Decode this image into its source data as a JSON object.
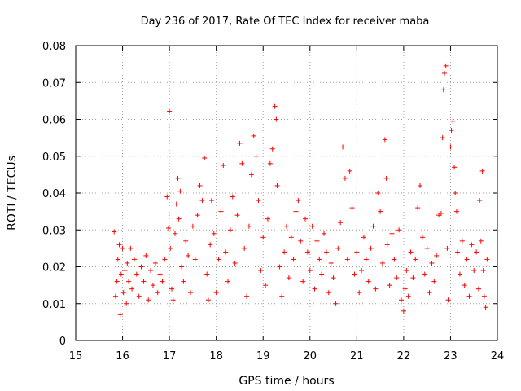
{
  "chart_data": {
    "type": "scatter",
    "title": "Day 236 of 2017, Rate Of TEC Index for receiver maba",
    "xlabel": "GPS time / hours",
    "ylabel": "ROTI / TECUs",
    "xlim": [
      15,
      24
    ],
    "ylim": [
      0,
      0.08
    ],
    "xticks": [
      "15",
      "16",
      "17",
      "18",
      "19",
      "20",
      "21",
      "22",
      "23",
      "24"
    ],
    "yticks": [
      "0",
      "0.01",
      "0.02",
      "0.03",
      "0.04",
      "0.05",
      "0.06",
      "0.07",
      "0.08"
    ],
    "grid": true,
    "marker": "+",
    "marker_color": "#ff0000",
    "series": [
      {
        "name": "ROTI",
        "points": [
          [
            15.82,
            0.0295
          ],
          [
            15.85,
            0.012
          ],
          [
            15.88,
            0.016
          ],
          [
            15.9,
            0.022
          ],
          [
            15.93,
            0.026
          ],
          [
            15.95,
            0.007
          ],
          [
            15.97,
            0.018
          ],
          [
            16.0,
            0.025
          ],
          [
            16.02,
            0.013
          ],
          [
            16.05,
            0.019
          ],
          [
            16.08,
            0.01
          ],
          [
            16.1,
            0.021
          ],
          [
            16.13,
            0.016
          ],
          [
            16.17,
            0.025
          ],
          [
            16.2,
            0.014
          ],
          [
            16.25,
            0.022
          ],
          [
            16.3,
            0.018
          ],
          [
            16.35,
            0.012
          ],
          [
            16.4,
            0.02
          ],
          [
            16.45,
            0.016
          ],
          [
            16.5,
            0.023
          ],
          [
            16.55,
            0.011
          ],
          [
            16.6,
            0.019
          ],
          [
            16.65,
            0.015
          ],
          [
            16.7,
            0.021
          ],
          [
            16.75,
            0.013
          ],
          [
            16.8,
            0.018
          ],
          [
            16.85,
            0.016
          ],
          [
            16.9,
            0.022
          ],
          [
            16.95,
            0.039
          ],
          [
            16.98,
            0.0305
          ],
          [
            17.0,
            0.0622
          ],
          [
            17.02,
            0.025
          ],
          [
            17.05,
            0.014
          ],
          [
            17.08,
            0.011
          ],
          [
            17.12,
            0.029
          ],
          [
            17.15,
            0.037
          ],
          [
            17.18,
            0.044
          ],
          [
            17.2,
            0.033
          ],
          [
            17.23,
            0.0405
          ],
          [
            17.26,
            0.02
          ],
          [
            17.3,
            0.016
          ],
          [
            17.35,
            0.027
          ],
          [
            17.4,
            0.023
          ],
          [
            17.45,
            0.013
          ],
          [
            17.5,
            0.031
          ],
          [
            17.55,
            0.022
          ],
          [
            17.6,
            0.034
          ],
          [
            17.65,
            0.042
          ],
          [
            17.7,
            0.038
          ],
          [
            17.75,
            0.0495
          ],
          [
            17.8,
            0.018
          ],
          [
            17.83,
            0.011
          ],
          [
            17.87,
            0.026
          ],
          [
            17.9,
            0.038
          ],
          [
            17.95,
            0.029
          ],
          [
            18.0,
            0.013
          ],
          [
            18.05,
            0.022
          ],
          [
            18.1,
            0.035
          ],
          [
            18.15,
            0.0475
          ],
          [
            18.2,
            0.024
          ],
          [
            18.25,
            0.016
          ],
          [
            18.3,
            0.03
          ],
          [
            18.35,
            0.039
          ],
          [
            18.4,
            0.021
          ],
          [
            18.45,
            0.034
          ],
          [
            18.5,
            0.0535
          ],
          [
            18.55,
            0.048
          ],
          [
            18.6,
            0.025
          ],
          [
            18.65,
            0.012
          ],
          [
            18.7,
            0.031
          ],
          [
            18.75,
            0.045
          ],
          [
            18.8,
            0.0555
          ],
          [
            18.85,
            0.05
          ],
          [
            18.9,
            0.038
          ],
          [
            18.95,
            0.019
          ],
          [
            19.0,
            0.028
          ],
          [
            19.05,
            0.015
          ],
          [
            19.1,
            0.033
          ],
          [
            19.15,
            0.048
          ],
          [
            19.2,
            0.052
          ],
          [
            19.25,
            0.0635
          ],
          [
            19.28,
            0.06
          ],
          [
            19.3,
            0.042
          ],
          [
            19.35,
            0.02
          ],
          [
            19.4,
            0.012
          ],
          [
            19.45,
            0.024
          ],
          [
            19.5,
            0.031
          ],
          [
            19.55,
            0.017
          ],
          [
            19.6,
            0.028
          ],
          [
            19.65,
            0.022
          ],
          [
            19.7,
            0.035
          ],
          [
            19.75,
            0.038
          ],
          [
            19.8,
            0.027
          ],
          [
            19.85,
            0.016
          ],
          [
            19.9,
            0.033
          ],
          [
            19.95,
            0.024
          ],
          [
            20.0,
            0.019
          ],
          [
            20.05,
            0.031
          ],
          [
            20.1,
            0.014
          ],
          [
            20.15,
            0.027
          ],
          [
            20.2,
            0.022
          ],
          [
            20.25,
            0.018
          ],
          [
            20.3,
            0.029
          ],
          [
            20.35,
            0.024
          ],
          [
            20.4,
            0.013
          ],
          [
            20.45,
            0.021
          ],
          [
            20.5,
            0.017
          ],
          [
            20.55,
            0.01
          ],
          [
            20.6,
            0.025
          ],
          [
            20.65,
            0.032
          ],
          [
            20.7,
            0.0525
          ],
          [
            20.75,
            0.044
          ],
          [
            20.8,
            0.022
          ],
          [
            20.85,
            0.046
          ],
          [
            20.9,
            0.036
          ],
          [
            20.95,
            0.018
          ],
          [
            21.0,
            0.024
          ],
          [
            21.05,
            0.013
          ],
          [
            21.1,
            0.019
          ],
          [
            21.15,
            0.028
          ],
          [
            21.2,
            0.022
          ],
          [
            21.25,
            0.016
          ],
          [
            21.3,
            0.025
          ],
          [
            21.35,
            0.031
          ],
          [
            21.4,
            0.014
          ],
          [
            21.45,
            0.04
          ],
          [
            21.5,
            0.035
          ],
          [
            21.55,
            0.021
          ],
          [
            21.6,
            0.0545
          ],
          [
            21.63,
            0.044
          ],
          [
            21.65,
            0.026
          ],
          [
            21.7,
            0.015
          ],
          [
            21.75,
            0.029
          ],
          [
            21.8,
            0.022
          ],
          [
            21.85,
            0.017
          ],
          [
            21.9,
            0.03
          ],
          [
            21.95,
            0.011
          ],
          [
            22.0,
            0.008
          ],
          [
            22.03,
            0.014
          ],
          [
            22.06,
            0.019
          ],
          [
            22.1,
            0.012
          ],
          [
            22.15,
            0.024
          ],
          [
            22.2,
            0.017
          ],
          [
            22.25,
            0.022
          ],
          [
            22.3,
            0.036
          ],
          [
            22.35,
            0.042
          ],
          [
            22.4,
            0.028
          ],
          [
            22.45,
            0.018
          ],
          [
            22.5,
            0.025
          ],
          [
            22.55,
            0.013
          ],
          [
            22.6,
            0.021
          ],
          [
            22.65,
            0.016
          ],
          [
            22.7,
            0.023
          ],
          [
            22.75,
            0.034
          ],
          [
            22.8,
            0.0345
          ],
          [
            22.83,
            0.055
          ],
          [
            22.85,
            0.068
          ],
          [
            22.87,
            0.0725
          ],
          [
            22.9,
            0.0745
          ],
          [
            22.93,
            0.025
          ],
          [
            22.95,
            0.011
          ],
          [
            23.0,
            0.0525
          ],
          [
            23.02,
            0.057
          ],
          [
            23.05,
            0.0595
          ],
          [
            23.08,
            0.047
          ],
          [
            23.1,
            0.04
          ],
          [
            23.13,
            0.035
          ],
          [
            23.15,
            0.024
          ],
          [
            23.2,
            0.018
          ],
          [
            23.25,
            0.027
          ],
          [
            23.3,
            0.015
          ],
          [
            23.35,
            0.022
          ],
          [
            23.4,
            0.012
          ],
          [
            23.45,
            0.026
          ],
          [
            23.5,
            0.019
          ],
          [
            23.55,
            0.024
          ],
          [
            23.6,
            0.014
          ],
          [
            23.62,
            0.038
          ],
          [
            23.65,
            0.027
          ],
          [
            23.68,
            0.046
          ],
          [
            23.7,
            0.019
          ],
          [
            23.72,
            0.012
          ],
          [
            23.75,
            0.009
          ],
          [
            23.78,
            0.022
          ]
        ]
      }
    ]
  }
}
